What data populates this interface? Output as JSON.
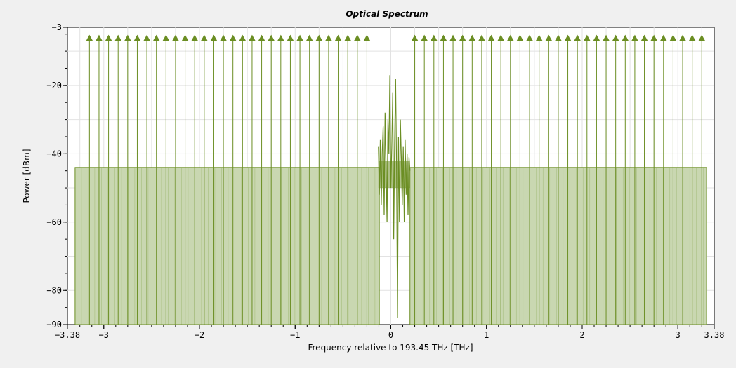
{
  "chart_data": {
    "type": "line",
    "title": "Optical Spectrum",
    "xlabel": "Frequency relative to 193.45 THz [THz]",
    "ylabel": "Power [dBm]",
    "xlim": [
      -3.38,
      3.38
    ],
    "ylim": [
      -90,
      -3
    ],
    "x_ticks": [
      {
        "value": -3.38,
        "label": "−3.38"
      },
      {
        "value": -3,
        "label": "−3"
      },
      {
        "value": -2,
        "label": "−2"
      },
      {
        "value": -1,
        "label": "−1"
      },
      {
        "value": 0,
        "label": "0"
      },
      {
        "value": 1,
        "label": "1"
      },
      {
        "value": 2,
        "label": "2"
      },
      {
        "value": 3,
        "label": "3"
      },
      {
        "value": 3.38,
        "label": "3.38"
      }
    ],
    "y_ticks": [
      {
        "value": -3,
        "label": "−3"
      },
      {
        "value": -20,
        "label": "−20"
      },
      {
        "value": -40,
        "label": "−40"
      },
      {
        "value": -60,
        "label": "−60"
      },
      {
        "value": -80,
        "label": "−80"
      },
      {
        "value": -90,
        "label": "−90"
      }
    ],
    "grid": true,
    "colors": {
      "series": "#6b8e23",
      "fill": "#c9d7b1",
      "grid": "#e2e2e2",
      "plot_background": "#ffffff",
      "background": "#f0f0f0"
    },
    "series": [
      {
        "kind": "noise_floor_fill",
        "segments": [
          {
            "x_start": -3.3,
            "x_end": -0.12,
            "y": -44
          },
          {
            "x_start": 0.2,
            "x_end": 3.3,
            "y": -44
          }
        ]
      },
      {
        "kind": "carrier_lines",
        "y": -6.2,
        "x_start": -3.15,
        "x_step": 0.1,
        "count_left": 30,
        "count_right": 31,
        "right_start": 0.25
      },
      {
        "kind": "signal",
        "x_range": [
          -0.13,
          0.2
        ],
        "points": [
          {
            "x": -0.13,
            "y": -38
          },
          {
            "x": -0.12,
            "y": -52
          },
          {
            "x": -0.11,
            "y": -36
          },
          {
            "x": -0.1,
            "y": -55
          },
          {
            "x": -0.09,
            "y": -40
          },
          {
            "x": -0.08,
            "y": -32
          },
          {
            "x": -0.07,
            "y": -58
          },
          {
            "x": -0.06,
            "y": -28
          },
          {
            "x": -0.05,
            "y": -44
          },
          {
            "x": -0.04,
            "y": -60
          },
          {
            "x": -0.03,
            "y": -30
          },
          {
            "x": -0.02,
            "y": -40
          },
          {
            "x": -0.01,
            "y": -17
          },
          {
            "x": 0.0,
            "y": -50
          },
          {
            "x": 0.01,
            "y": -38
          },
          {
            "x": 0.02,
            "y": -22
          },
          {
            "x": 0.03,
            "y": -65
          },
          {
            "x": 0.04,
            "y": -37
          },
          {
            "x": 0.05,
            "y": -18
          },
          {
            "x": 0.06,
            "y": -45
          },
          {
            "x": 0.07,
            "y": -88
          },
          {
            "x": 0.08,
            "y": -35
          },
          {
            "x": 0.09,
            "y": -60
          },
          {
            "x": 0.1,
            "y": -30
          },
          {
            "x": 0.11,
            "y": -42
          },
          {
            "x": 0.12,
            "y": -55
          },
          {
            "x": 0.13,
            "y": -38
          },
          {
            "x": 0.14,
            "y": -60
          },
          {
            "x": 0.15,
            "y": -36
          },
          {
            "x": 0.16,
            "y": -52
          },
          {
            "x": 0.17,
            "y": -40
          },
          {
            "x": 0.18,
            "y": -58
          },
          {
            "x": 0.19,
            "y": -41
          },
          {
            "x": 0.2,
            "y": -45
          }
        ]
      }
    ]
  }
}
